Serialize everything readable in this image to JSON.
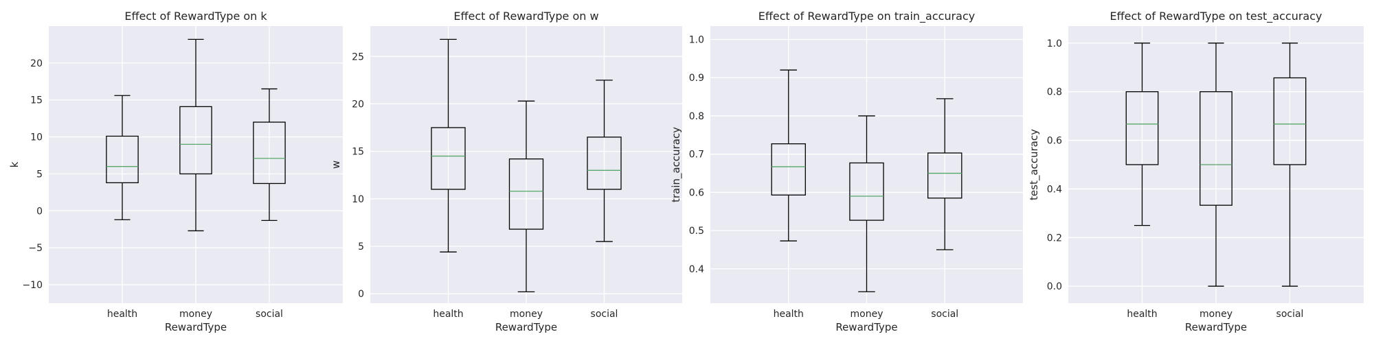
{
  "chart_data": [
    {
      "type": "box",
      "title": "Effect of RewardType on k",
      "xlabel": "RewardType",
      "ylabel": "k",
      "categories": [
        "health",
        "money",
        "social"
      ],
      "ylim": [
        -12.5,
        25
      ],
      "yticks": [
        -10,
        -5,
        0,
        5,
        10,
        15,
        20
      ],
      "ytick_labels": [
        "−10",
        "−5",
        "0",
        "5",
        "10",
        "15",
        "20"
      ],
      "grid": true,
      "boxes": [
        {
          "whisker_low": -1.2,
          "q1": 3.8,
          "median": 6.0,
          "q3": 10.1,
          "whisker_high": 15.6
        },
        {
          "whisker_low": -2.7,
          "q1": 5.0,
          "median": 9.0,
          "q3": 14.1,
          "whisker_high": 23.2
        },
        {
          "whisker_low": -1.3,
          "q1": 3.7,
          "median": 7.1,
          "q3": 12.0,
          "whisker_high": 16.5
        }
      ]
    },
    {
      "type": "box",
      "title": "Effect of RewardType on w",
      "xlabel": "RewardType",
      "ylabel": "w",
      "categories": [
        "health",
        "money",
        "social"
      ],
      "ylim": [
        -1.0,
        28.2
      ],
      "yticks": [
        0,
        5,
        10,
        15,
        20,
        25
      ],
      "ytick_labels": [
        "0",
        "5",
        "10",
        "15",
        "20",
        "25"
      ],
      "grid": true,
      "boxes": [
        {
          "whisker_low": 4.4,
          "q1": 11.0,
          "median": 14.5,
          "q3": 17.5,
          "whisker_high": 26.8
        },
        {
          "whisker_low": 0.2,
          "q1": 6.8,
          "median": 10.8,
          "q3": 14.2,
          "whisker_high": 20.3
        },
        {
          "whisker_low": 5.5,
          "q1": 11.0,
          "median": 13.0,
          "q3": 16.5,
          "whisker_high": 22.5
        }
      ]
    },
    {
      "type": "box",
      "title": "Effect of RewardType on train_accuracy",
      "xlabel": "RewardType",
      "ylabel": "train_accuracy",
      "categories": [
        "health",
        "money",
        "social"
      ],
      "ylim": [
        0.31,
        1.035
      ],
      "yticks": [
        0.4,
        0.5,
        0.6,
        0.7,
        0.8,
        0.9,
        1.0
      ],
      "ytick_labels": [
        "0.4",
        "0.5",
        "0.6",
        "0.7",
        "0.8",
        "0.9",
        "1.0"
      ],
      "grid": true,
      "boxes": [
        {
          "whisker_low": 0.473,
          "q1": 0.593,
          "median": 0.667,
          "q3": 0.727,
          "whisker_high": 0.92
        },
        {
          "whisker_low": 0.34,
          "q1": 0.527,
          "median": 0.59,
          "q3": 0.677,
          "whisker_high": 0.8
        },
        {
          "whisker_low": 0.45,
          "q1": 0.585,
          "median": 0.65,
          "q3": 0.703,
          "whisker_high": 0.845
        }
      ]
    },
    {
      "type": "box",
      "title": "Effect of RewardType on test_accuracy",
      "xlabel": "RewardType",
      "ylabel": "test_accuracy",
      "categories": [
        "health",
        "money",
        "social"
      ],
      "ylim": [
        -0.07,
        1.07
      ],
      "yticks": [
        0.0,
        0.2,
        0.4,
        0.6,
        0.8,
        1.0
      ],
      "ytick_labels": [
        "0.0",
        "0.2",
        "0.4",
        "0.6",
        "0.8",
        "1.0"
      ],
      "grid": true,
      "boxes": [
        {
          "whisker_low": 0.25,
          "q1": 0.5,
          "median": 0.667,
          "q3": 0.8,
          "whisker_high": 1.0
        },
        {
          "whisker_low": 0.0,
          "q1": 0.333,
          "median": 0.5,
          "q3": 0.8,
          "whisker_high": 1.0
        },
        {
          "whisker_low": 0.0,
          "q1": 0.5,
          "median": 0.667,
          "q3": 0.857,
          "whisker_high": 1.0
        }
      ]
    }
  ],
  "colors": {
    "plot_background": "#eaeaf2",
    "grid": "#ffffff",
    "box_line": "#000000",
    "median_line": "#55a868",
    "text": "#262626"
  }
}
